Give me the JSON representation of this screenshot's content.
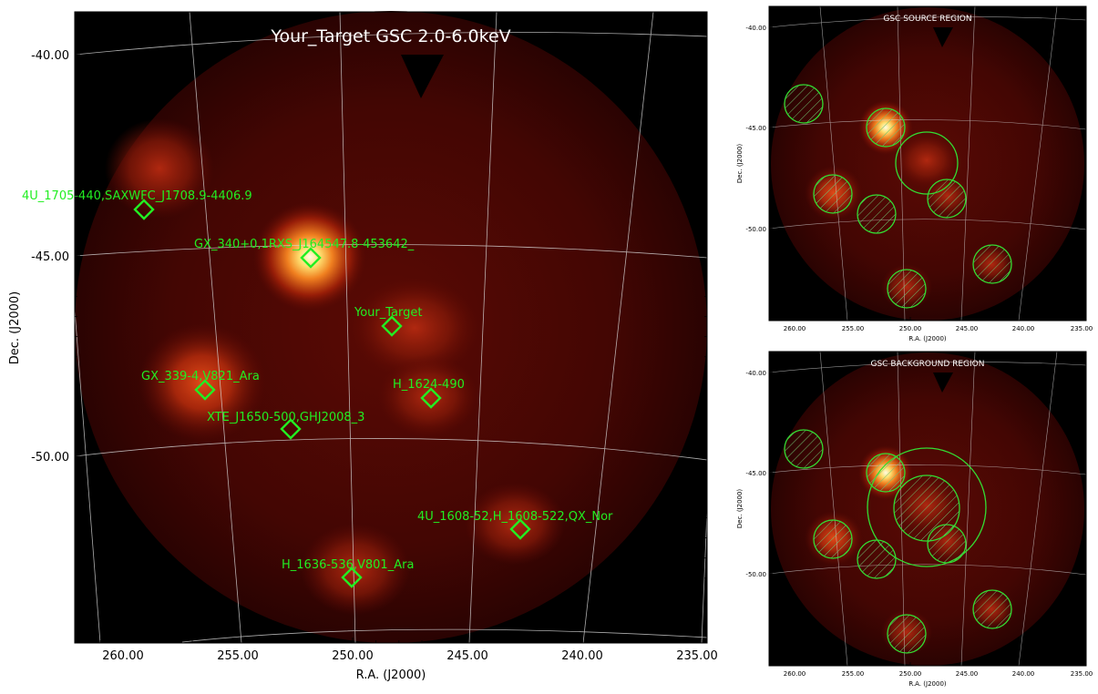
{
  "chart_data": [
    {
      "type": "sky-image",
      "title": "Your_Target GSC 2.0-6.0keV",
      "xlabel": "R.A. (J2000)",
      "ylabel": "Dec. (J2000)",
      "xlim": [
        262,
        235
      ],
      "ylim": [
        -54,
        -39
      ],
      "xticks": [
        "260.00",
        "255.00",
        "250.00",
        "245.00",
        "240.00",
        "235.00"
      ],
      "yticks": [
        "-40.00",
        "-45.00",
        "-50.00"
      ],
      "grid": true,
      "background_color": "#000000",
      "marker_color": "#22ee22",
      "sources": [
        {
          "name": "4U_1705-440,SAXWFC_J1708.9-4406.9",
          "ra": 258.9,
          "dec": -44.1
        },
        {
          "name": "GX_340+0,1RXS_J164547.8-453642_",
          "ra": 251.4,
          "dec": -45.6
        },
        {
          "name": "Your_Target",
          "ra": 248.4,
          "dec": -47.0
        },
        {
          "name": "GX_339-4,V821_Ara",
          "ra": 255.7,
          "dec": -48.8
        },
        {
          "name": "H_1624-490",
          "ra": 247.0,
          "dec": -49.2
        },
        {
          "name": "XTE_J1650-500,GHJ2008_3",
          "ra": 252.5,
          "dec": -50.1
        },
        {
          "name": "4U_1608-52,H_1608-522,QX_Nor",
          "ra": 243.2,
          "dec": -52.4
        },
        {
          "name": "H_1636-536,V801_Ara",
          "ra": 249.9,
          "dec": -53.7
        }
      ]
    },
    {
      "type": "sky-image",
      "title": "GSC SOURCE REGION",
      "xlabel": "R.A. (J2000)",
      "ylabel": "Dec. (J2000)",
      "xticks": [
        "260.00",
        "255.00",
        "250.00",
        "245.00",
        "240.00",
        "235.00"
      ],
      "yticks": [
        "-40.00",
        "-45.00",
        "-50.00"
      ],
      "regions": {
        "source_circle_radius_deg": 1.5,
        "excluded_hatched_circles": 8
      }
    },
    {
      "type": "sky-image",
      "title": "GSC BACKGROUND REGION",
      "xlabel": "R.A. (J2000)",
      "ylabel": "Dec. (J2000)",
      "xticks": [
        "260.00",
        "255.00",
        "250.00",
        "245.00",
        "240.00",
        "235.00"
      ],
      "yticks": [
        "-40.00",
        "-45.00",
        "-50.00"
      ],
      "regions": {
        "background_annulus": true,
        "excluded_hatched_circles": 9
      }
    }
  ]
}
